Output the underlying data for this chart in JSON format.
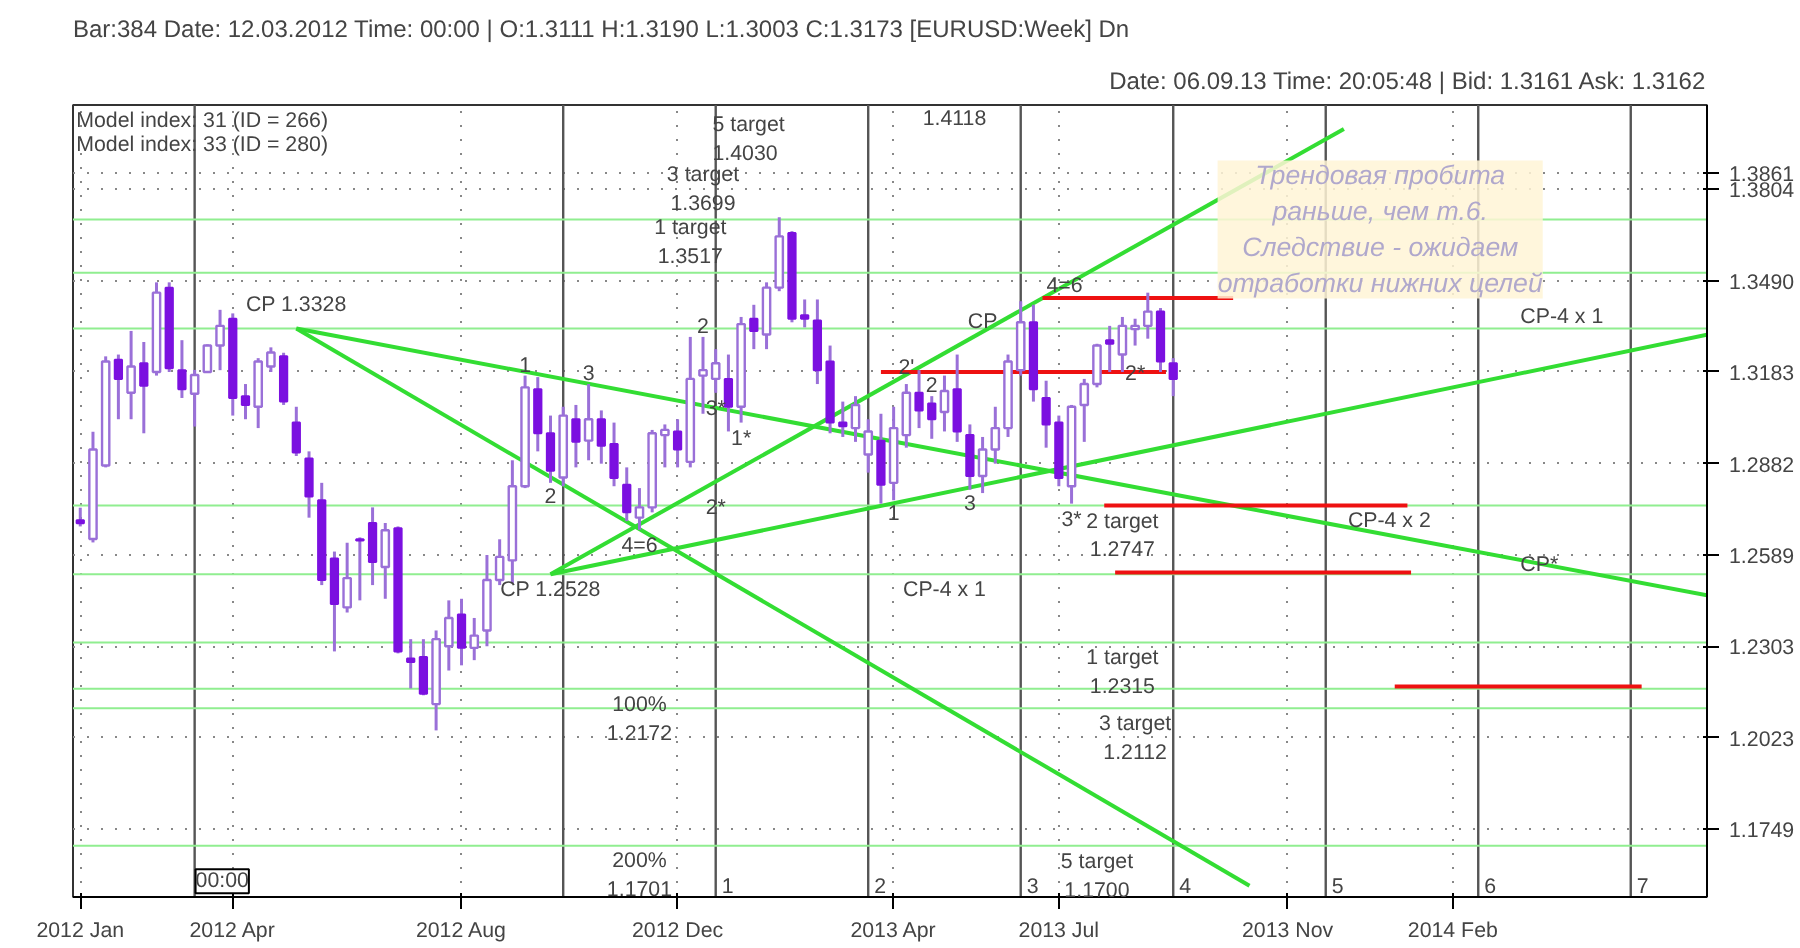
{
  "chart_data": {
    "type": "candlestick",
    "title": "Bar:384 Date: 12.03.2012 Time: 00:00 | O:1.3111 H:1.3190 L:1.3003 C:1.3173 [EURUSD:Week] Dn",
    "subtitle": "Date: 06.09.13 Time: 20:05:48 | Bid: 1.3161 Ask: 1.3162",
    "x": [
      "2012-01-09",
      "2012-01-16",
      "2012-01-23",
      "2012-01-30",
      "2012-02-06",
      "2012-02-13",
      "2012-02-20",
      "2012-02-27",
      "2012-03-05",
      "2012-03-12",
      "2012-03-19",
      "2012-03-26",
      "2012-04-02",
      "2012-04-09",
      "2012-04-16",
      "2012-04-23",
      "2012-04-30",
      "2012-05-07",
      "2012-05-14",
      "2012-05-21",
      "2012-05-28",
      "2012-06-04",
      "2012-06-11",
      "2012-06-18",
      "2012-06-25",
      "2012-07-02",
      "2012-07-09",
      "2012-07-16",
      "2012-07-23",
      "2012-07-30",
      "2012-08-06",
      "2012-08-13",
      "2012-08-20",
      "2012-08-27",
      "2012-09-03",
      "2012-09-10",
      "2012-09-17",
      "2012-09-24",
      "2012-10-01",
      "2012-10-08",
      "2012-10-15",
      "2012-10-22",
      "2012-10-29",
      "2012-11-05",
      "2012-11-12",
      "2012-11-19",
      "2012-11-26",
      "2012-12-03",
      "2012-12-10",
      "2012-12-17",
      "2012-12-24",
      "2012-12-31",
      "2013-01-07",
      "2013-01-14",
      "2013-01-21",
      "2013-01-28",
      "2013-02-04",
      "2013-02-11",
      "2013-02-18",
      "2013-02-25",
      "2013-03-04",
      "2013-03-11",
      "2013-03-18",
      "2013-03-25",
      "2013-04-01",
      "2013-04-08",
      "2013-04-15",
      "2013-04-22",
      "2013-04-29",
      "2013-05-06",
      "2013-05-13",
      "2013-05-20",
      "2013-05-27",
      "2013-06-03",
      "2013-06-10",
      "2013-06-17",
      "2013-06-24",
      "2013-07-01",
      "2013-07-08",
      "2013-07-15",
      "2013-07-22",
      "2013-07-29",
      "2013-08-05",
      "2013-08-12",
      "2013-08-19",
      "2013-08-26",
      "2013-09-02"
    ],
    "ohlc": [
      [
        1.27,
        1.274,
        1.268,
        1.269
      ],
      [
        1.264,
        1.2986,
        1.2629,
        1.2928
      ],
      [
        1.2876,
        1.3235,
        1.287,
        1.3218
      ],
      [
        1.3224,
        1.3241,
        1.3027,
        1.316
      ],
      [
        1.3114,
        1.332,
        1.3027,
        1.3201
      ],
      [
        1.3212,
        1.3283,
        1.2981,
        1.3137
      ],
      [
        1.3183,
        1.3484,
        1.3171,
        1.3449
      ],
      [
        1.3466,
        1.3484,
        1.3183,
        1.3195
      ],
      [
        1.3189,
        1.3289,
        1.3097,
        1.3126
      ],
      [
        1.3111,
        1.319,
        1.3003,
        1.3173
      ],
      [
        1.3183,
        1.3275,
        1.318,
        1.3271
      ],
      [
        1.3271,
        1.3391,
        1.3189,
        1.3337
      ],
      [
        1.3361,
        1.3379,
        1.3039,
        1.3097
      ],
      [
        1.3103,
        1.3143,
        1.3027,
        1.3074
      ],
      [
        1.3068,
        1.3229,
        1.2998,
        1.3218
      ],
      [
        1.3201,
        1.3265,
        1.3183,
        1.3248
      ],
      [
        1.3235,
        1.3247,
        1.3074,
        1.3085
      ],
      [
        1.3016,
        1.3068,
        1.2907,
        1.2918
      ],
      [
        1.2899,
        1.2922,
        1.2708,
        1.2776
      ],
      [
        1.2764,
        1.282,
        1.2494,
        1.251
      ],
      [
        1.2578,
        1.26,
        1.2287,
        1.2435
      ],
      [
        1.2424,
        1.2628,
        1.2408,
        1.2516
      ],
      [
        1.2639,
        1.2645,
        1.2446,
        1.2635
      ],
      [
        1.2691,
        1.2741,
        1.2494,
        1.2567
      ],
      [
        1.2551,
        1.2691,
        1.2451,
        1.2668
      ],
      [
        1.2674,
        1.268,
        1.2281,
        1.2287
      ],
      [
        1.2265,
        1.2325,
        1.2173,
        1.2254
      ],
      [
        1.227,
        1.2325,
        1.2152,
        1.2157
      ],
      [
        1.2125,
        1.2352,
        1.2045,
        1.2325
      ],
      [
        1.2303,
        1.2446,
        1.2228,
        1.2391
      ],
      [
        1.2402,
        1.2451,
        1.2244,
        1.2298
      ],
      [
        1.2298,
        1.2391,
        1.226,
        1.2336
      ],
      [
        1.2352,
        1.2589,
        1.2303,
        1.251
      ],
      [
        1.251,
        1.2639,
        1.2494,
        1.2583
      ],
      [
        1.2572,
        1.2893,
        1.25,
        1.2809
      ],
      [
        1.2809,
        1.3171,
        1.2803,
        1.3132
      ],
      [
        1.3126,
        1.3166,
        1.2922,
        1.2981
      ],
      [
        1.2981,
        1.3039,
        1.282,
        1.2859
      ],
      [
        1.2837,
        1.3068,
        1.2809,
        1.3039
      ],
      [
        1.3027,
        1.3074,
        1.287,
        1.2953
      ],
      [
        1.2957,
        1.3143,
        1.2893,
        1.3027
      ],
      [
        1.3027,
        1.3056,
        1.2882,
        1.294
      ],
      [
        1.2946,
        1.3016,
        1.2809,
        1.2836
      ],
      [
        1.2814,
        1.287,
        1.2697,
        1.2725
      ],
      [
        1.2708,
        1.2803,
        1.2669,
        1.2741
      ],
      [
        1.2741,
        1.2992,
        1.2725,
        1.2981
      ],
      [
        1.2975,
        1.301,
        1.287,
        1.2992
      ],
      [
        1.2987,
        1.3027,
        1.287,
        1.2928
      ],
      [
        1.2888,
        1.33,
        1.287,
        1.316
      ],
      [
        1.3171,
        1.33,
        1.3045,
        1.3189
      ],
      [
        1.316,
        1.3259,
        1.3114,
        1.3212
      ],
      [
        1.316,
        1.3241,
        1.2987,
        1.3068
      ],
      [
        1.3068,
        1.3367,
        1.3016,
        1.3343
      ],
      [
        1.3361,
        1.3408,
        1.3259,
        1.332
      ],
      [
        1.3308,
        1.3484,
        1.3259,
        1.3466
      ],
      [
        1.3466,
        1.3707,
        1.3454,
        1.3641
      ],
      [
        1.3653,
        1.3659,
        1.3349,
        1.3361
      ],
      [
        1.3373,
        1.3426,
        1.3332,
        1.3361
      ],
      [
        1.3355,
        1.3426,
        1.3143,
        1.3189
      ],
      [
        1.3218,
        1.3271,
        1.2981,
        1.3016
      ],
      [
        1.3016,
        1.3085,
        1.2969,
        1.3004
      ],
      [
        1.2998,
        1.3103,
        1.2953,
        1.3074
      ],
      [
        1.2912,
        1.3027,
        1.2853,
        1.2987
      ],
      [
        1.2957,
        1.3045,
        1.2753,
        1.2814
      ],
      [
        1.282,
        1.3068,
        1.2764,
        1.2998
      ],
      [
        1.2975,
        1.3143,
        1.2934,
        1.3114
      ],
      [
        1.3114,
        1.3189,
        1.2998,
        1.3056
      ],
      [
        1.3079,
        1.3103,
        1.2963,
        1.3027
      ],
      [
        1.3051,
        1.3171,
        1.2987,
        1.312
      ],
      [
        1.3126,
        1.3241,
        1.2953,
        1.2987
      ],
      [
        1.2975,
        1.301,
        1.2798,
        1.2842
      ],
      [
        1.2842,
        1.2969,
        1.2787,
        1.2928
      ],
      [
        1.2928,
        1.3068,
        1.2882,
        1.2998
      ],
      [
        1.2998,
        1.3241,
        1.2969,
        1.3218
      ],
      [
        1.3189,
        1.342,
        1.3171,
        1.3349
      ],
      [
        1.3349,
        1.3408,
        1.3085,
        1.3126
      ],
      [
        1.3097,
        1.3154,
        1.2934,
        1.301
      ],
      [
        1.3016,
        1.3039,
        1.2809,
        1.2836
      ],
      [
        1.2809,
        1.3074,
        1.2753,
        1.3068
      ],
      [
        1.3074,
        1.316,
        1.2953,
        1.3143
      ],
      [
        1.3143,
        1.3277,
        1.3132,
        1.3271
      ],
      [
        1.3289,
        1.3337,
        1.3183,
        1.3277
      ],
      [
        1.3241,
        1.3367,
        1.3183,
        1.3337
      ],
      [
        1.3326,
        1.3361,
        1.3271,
        1.3337
      ],
      [
        1.3337,
        1.3449,
        1.3294,
        1.3385
      ],
      [
        1.3385,
        1.3397,
        1.3183,
        1.3218
      ],
      [
        1.3212,
        1.3229,
        1.3103,
        1.316
      ]
    ],
    "series": [
      {
        "type": "line",
        "color": "#33dd33",
        "x": [
          "2012-05-07",
          "2014-06-23"
        ],
        "values": [
          1.3328,
          1.2462
        ]
      },
      {
        "type": "line",
        "color": "#33dd33",
        "x": [
          "2012-05-07",
          "2013-10-14"
        ],
        "values": [
          1.3328,
          1.1583
        ]
      },
      {
        "type": "line",
        "color": "#33dd33",
        "x": [
          "2012-09-24",
          "2013-12-05"
        ],
        "values": [
          1.2528,
          1.4015
        ]
      },
      {
        "type": "line",
        "color": "#33dd33",
        "x": [
          "2012-09-24",
          "2014-06-23"
        ],
        "values": [
          1.2528,
          1.3307
        ]
      },
      {
        "type": "line",
        "color": "#ee1111",
        "x": [
          "2013-06-22",
          "2013-10-05"
        ],
        "values": [
          1.3431,
          1.3431
        ]
      },
      {
        "type": "line",
        "color": "#ee1111",
        "x": [
          "2013-03-25",
          "2013-08-29"
        ],
        "values": [
          1.3183,
          1.3183
        ]
      },
      {
        "type": "line",
        "color": "#ee1111",
        "x": [
          "2013-07-26",
          "2014-01-09"
        ],
        "values": [
          1.2747,
          1.2747
        ]
      },
      {
        "type": "line",
        "color": "#ee1111",
        "x": [
          "2013-08-01",
          "2014-01-11"
        ],
        "values": [
          1.2534,
          1.2534
        ]
      },
      {
        "type": "line",
        "color": "#ee1111",
        "x": [
          "2014-01-02",
          "2014-05-18"
        ],
        "values": [
          1.2179,
          1.2179
        ]
      }
    ],
    "ref_lines": [
      {
        "axis": "x",
        "value": "2012-03-12",
        "color": "#555555"
      },
      {
        "axis": "x",
        "value": "2012-10-01",
        "color": "#555555"
      },
      {
        "axis": "x",
        "value": "2012-12-24",
        "label": "1",
        "color": "#555555"
      },
      {
        "axis": "x",
        "value": "2013-03-18",
        "label": "2",
        "color": "#555555"
      },
      {
        "axis": "x",
        "value": "2013-06-10",
        "label": "3",
        "color": "#555555"
      },
      {
        "axis": "x",
        "value": "2013-09-02",
        "label": "4",
        "color": "#555555"
      },
      {
        "axis": "x",
        "value": "2013-11-25",
        "label": "5",
        "color": "#555555"
      },
      {
        "axis": "x",
        "value": "2014-02-17",
        "label": "6",
        "color": "#555555"
      },
      {
        "axis": "x",
        "value": "2014-05-12",
        "label": "7",
        "color": "#555555"
      },
      {
        "axis": "y",
        "value": 1.3699,
        "color": "#90ee90"
      },
      {
        "axis": "y",
        "value": 1.3517,
        "color": "#90ee90"
      },
      {
        "axis": "y",
        "value": 1.3328,
        "color": "#90ee90"
      },
      {
        "axis": "y",
        "value": 1.2528,
        "color": "#90ee90"
      },
      {
        "axis": "y",
        "value": 1.2747,
        "color": "#90ee90"
      },
      {
        "axis": "y",
        "value": 1.2172,
        "color": "#90ee90"
      },
      {
        "axis": "y",
        "value": 1.2315,
        "color": "#90ee90"
      },
      {
        "axis": "y",
        "value": 1.2112,
        "color": "#90ee90"
      },
      {
        "axis": "y",
        "value": 1.17,
        "color": "#90ee90"
      }
    ],
    "annotations": [
      "Model index: 31 (ID = 266)",
      "Model index: 33 (ID = 280)",
      "1.4118",
      "Трендовая пробита\nраньше, чем т.6.\nСледствие - ожидаем\nотработки нижних целей",
      "00:00",
      {
        "text": "CP 1.3328",
        "x": "2012-05-07",
        "y": 1.3355
      },
      {
        "text": "CP 1.2528",
        "x": "2012-09-24",
        "y": 1.2528
      },
      {
        "text": "5 target\n1.4030",
        "x": "2012-12-20",
        "y": 1.407
      },
      {
        "text": "3 target\n1.3699",
        "x": "2012-12-17",
        "y": 1.3699
      },
      {
        "text": "1 target\n1.3517",
        "x": "2012-12-10",
        "y": 1.3517
      },
      {
        "text": "100%\n1.2172",
        "x": "2012-11-12",
        "y": 1.2172
      },
      {
        "text": "200%\n1.1701",
        "x": "2012-11-12",
        "y": 1.1701
      },
      {
        "text": "2 target\n1.2747",
        "x": "2013-08-05",
        "y": 1.2747
      },
      {
        "text": "1 target\n1.2315",
        "x": "2013-08-05",
        "y": 1.2315
      },
      {
        "text": "3 target\n1.2112",
        "x": "2013-08-12",
        "y": 1.2112
      },
      {
        "text": "5 target\n1.1700",
        "x": "2013-07-22",
        "y": 1.17
      },
      {
        "text": "CP-4 x 1",
        "x": "2013-04-29",
        "y": 1.2528
      },
      {
        "text": "CP-4 x 1",
        "x": "2014-03-10",
        "y": 1.3328
      },
      {
        "text": "CP-4 x 2",
        "x": "2013-12-05",
        "y": 1.266
      },
      {
        "text": "CP*",
        "x": "2014-03-10",
        "y": 1.252
      },
      {
        "text": "1",
        "x": "2012-09-10",
        "y": 1.3171
      },
      {
        "text": "2",
        "x": "2012-09-24",
        "y": 1.282
      },
      {
        "text": "3",
        "x": "2012-10-15",
        "y": 1.3143
      },
      {
        "text": "4=6",
        "x": "2012-11-12",
        "y": 1.2669
      },
      {
        "text": "2*",
        "x": "2012-12-24",
        "y": 1.279
      },
      {
        "text": "2",
        "x": "2012-12-17",
        "y": 1.33
      },
      {
        "text": "3*",
        "x": "2012-12-24",
        "y": 1.3114
      },
      {
        "text": "1*",
        "x": "2013-01-07",
        "y": 1.3016
      },
      {
        "text": "1",
        "x": "2013-04-01",
        "y": 1.2764
      },
      {
        "text": "2'",
        "x": "2013-04-08",
        "y": 1.3143
      },
      {
        "text": "2",
        "x": "2013-04-22",
        "y": 1.3103
      },
      {
        "text": "4=6",
        "x": "2013-06-22",
        "y": 1.3431
      },
      {
        "text": "CP",
        "x": "2013-05-20",
        "y": 1.3295
      },
      {
        "text": "3",
        "x": "2013-05-13",
        "y": 1.2798
      },
      {
        "text": "3*",
        "x": "2013-07-08",
        "y": 1.2753
      },
      {
        "text": "2*",
        "x": "2013-08-12",
        "y": 1.323
      }
    ],
    "xlim": [
      "2012-01-05",
      "2014-06-23"
    ],
    "xticks": [
      {
        "value": "2012-01-09",
        "label": "2012 Jan"
      },
      {
        "value": "2012-04-02",
        "label": "2012 Apr"
      },
      {
        "value": "2012-08-06",
        "label": "2012 Aug"
      },
      {
        "value": "2012-12-03",
        "label": "2012 Dec"
      },
      {
        "value": "2013-04-01",
        "label": "2013 Apr"
      },
      {
        "value": "2013-07-01",
        "label": "2013 Jul"
      },
      {
        "value": "2013-11-04",
        "label": "2013 Nov"
      },
      {
        "value": "2014-02-03",
        "label": "2014 Feb"
      }
    ],
    "ylim": [
      1.155,
      1.41
    ],
    "yticks": [
      1.1749,
      1.2023,
      1.2303,
      1.2589,
      1.2882,
      1.3183,
      {
        "value": 1.349,
        "label": "1.3490"
      },
      1.3804,
      1.3861
    ],
    "log": true,
    "grid": true
  }
}
